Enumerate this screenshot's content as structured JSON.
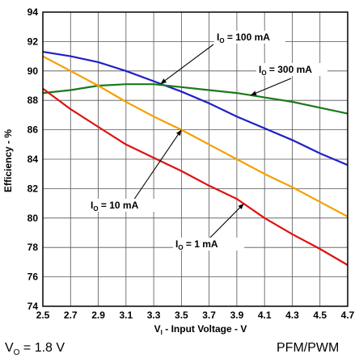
{
  "chart_data": {
    "type": "line",
    "xlabel_main": "V",
    "xlabel_sub": "I",
    "xlabel_rest": " - Input Voltage - V",
    "ylabel": "Efficiency - %",
    "xlim": [
      2.5,
      4.7
    ],
    "ylim": [
      74,
      94
    ],
    "x_ticks": [
      "2.5",
      "2.7",
      "2.9",
      "3.1",
      "3.3",
      "3.5",
      "3.7",
      "3.9",
      "4.1",
      "4.3",
      "4.5",
      "4.7"
    ],
    "y_ticks": [
      "74",
      "76",
      "78",
      "80",
      "82",
      "84",
      "86",
      "88",
      "90",
      "92",
      "94"
    ],
    "grid": true,
    "series": [
      {
        "name": "IO = 100 mA",
        "label_main": "I",
        "label_sub": "O",
        "label_rest": " = 100 mA",
        "color": "#1f1fc8",
        "x": [
          2.5,
          2.7,
          2.9,
          3.1,
          3.3,
          3.5,
          3.7,
          3.9,
          4.1,
          4.3,
          4.5,
          4.7
        ],
        "y": [
          91.3,
          91.0,
          90.6,
          90.0,
          89.3,
          88.6,
          87.8,
          86.9,
          86.1,
          85.3,
          84.4,
          83.6
        ]
      },
      {
        "name": "IO = 300 mA",
        "label_main": "I",
        "label_sub": "O",
        "label_rest": " = 300 mA",
        "color": "#1a7a1a",
        "x": [
          2.5,
          2.7,
          2.9,
          3.1,
          3.3,
          3.5,
          3.7,
          3.9,
          4.1,
          4.3,
          4.5,
          4.7
        ],
        "y": [
          88.5,
          88.7,
          89.0,
          89.1,
          89.1,
          88.9,
          88.7,
          88.5,
          88.2,
          87.9,
          87.5,
          87.1
        ]
      },
      {
        "name": "IO = 10 mA",
        "label_main": "I",
        "label_sub": "O",
        "label_rest": " = 10 mA",
        "color": "#f5a000",
        "x": [
          2.5,
          2.7,
          2.9,
          3.1,
          3.3,
          3.5,
          3.7,
          3.9,
          4.1,
          4.3,
          4.5,
          4.7
        ],
        "y": [
          91.0,
          90.0,
          89.0,
          87.9,
          86.9,
          86.0,
          85.0,
          84.0,
          83.0,
          82.1,
          81.1,
          80.1
        ]
      },
      {
        "name": "IO = 1 mA",
        "label_main": "I",
        "label_sub": "O",
        "label_rest": " = 1 mA",
        "color": "#e01010",
        "x": [
          2.5,
          2.7,
          2.9,
          3.1,
          3.3,
          3.5,
          3.7,
          3.9,
          4.1,
          4.3,
          4.5,
          4.7
        ],
        "y": [
          88.8,
          87.4,
          86.2,
          85.0,
          84.1,
          83.2,
          82.2,
          81.3,
          80.0,
          78.9,
          77.9,
          76.8
        ]
      }
    ]
  },
  "footer": {
    "left_main": "V",
    "left_sub": "O",
    "left_rest": " = 1.8 V",
    "right": "PFM/PWM"
  }
}
